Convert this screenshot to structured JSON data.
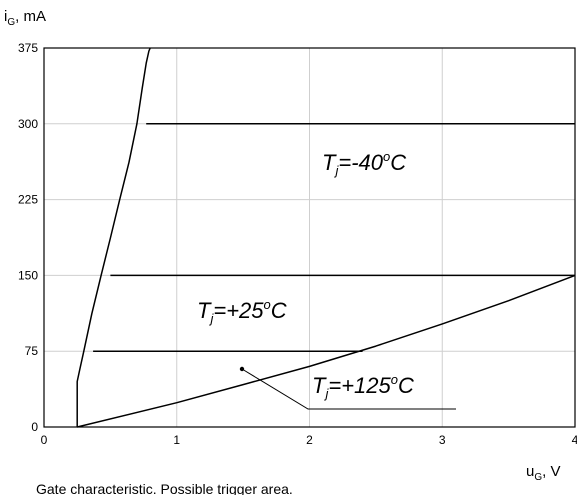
{
  "chart_data": {
    "type": "line",
    "caption": "Gate characteristic. Possible trigger area.",
    "xlabel": {
      "main": "u",
      "sub": "G",
      "unit": ", V"
    },
    "ylabel": {
      "main": "i",
      "sub": "G",
      "unit": ", mA"
    },
    "xlim": [
      0,
      4
    ],
    "ylim": [
      0,
      375
    ],
    "x_ticks": [
      "0",
      "1",
      "2",
      "3",
      "4"
    ],
    "y_ticks": [
      "0",
      "75",
      "150",
      "225",
      "300",
      "375"
    ],
    "grid": true,
    "series": [
      {
        "role": "upper boundary curve",
        "x": [
          0.25,
          0.25,
          0.27,
          0.3,
          0.36,
          0.43,
          0.5,
          0.57,
          0.64,
          0.7,
          0.74,
          0.77,
          0.79,
          0.8
        ],
        "y": [
          0,
          45,
          57,
          75,
          112,
          150,
          187,
          225,
          262,
          300,
          335,
          360,
          372,
          375
        ]
      },
      {
        "role": "lower boundary curve",
        "x": [
          0.25,
          1.0,
          1.5,
          2.0,
          2.5,
          3.0,
          3.5,
          4.0
        ],
        "y": [
          0,
          24,
          42,
          60,
          80,
          102,
          125,
          150
        ]
      },
      {
        "role": "threshold T=-40C",
        "x": [
          0.77,
          4.0
        ],
        "y": [
          300,
          300
        ]
      },
      {
        "role": "threshold T=+25C",
        "x": [
          0.5,
          4.0
        ],
        "y": [
          150,
          150
        ]
      },
      {
        "role": "threshold T=+125C",
        "x": [
          0.37,
          2.4
        ],
        "y": [
          75,
          75
        ]
      }
    ],
    "region_labels": [
      {
        "main": "T",
        "sub": "j",
        "rest": "=-40",
        "sup": "o",
        "end": "C"
      },
      {
        "main": "T",
        "sub": "j",
        "rest": "=+25",
        "sup": "o",
        "end": "C"
      },
      {
        "main": "T",
        "sub": "j",
        "rest": "=+125",
        "sup": "o",
        "end": "C"
      }
    ]
  }
}
